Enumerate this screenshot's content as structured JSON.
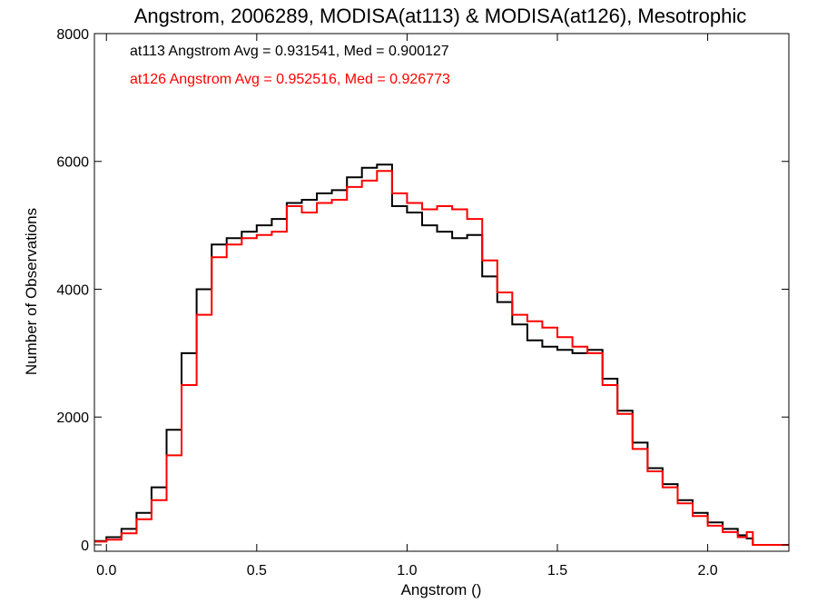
{
  "chart_data": {
    "type": "line",
    "title": "Angstrom, 2006289, MODISA(at113) & MODISA(at126), Mesotrophic",
    "xlabel": "Angstrom ()",
    "ylabel": "Number of Observations",
    "xlim": [
      -0.04,
      2.27
    ],
    "ylim": [
      -100,
      8000
    ],
    "x_ticks": [
      "0.0",
      "0.5",
      "1.0",
      "1.5",
      "2.0"
    ],
    "y_ticks": [
      "0",
      "2000",
      "4000",
      "6000",
      "8000"
    ],
    "grid": false,
    "legend_position": "top-left",
    "annotations": [
      {
        "text": "at113 Angstrom Avg = 0.931541, Med = 0.900127",
        "color": "#000000"
      },
      {
        "text": "at126 Angstrom Avg = 0.952516, Med = 0.926773",
        "color": "#ff0000"
      }
    ],
    "x": [
      -0.04,
      0.0,
      0.05,
      0.1,
      0.15,
      0.2,
      0.25,
      0.3,
      0.35,
      0.4,
      0.45,
      0.5,
      0.55,
      0.6,
      0.65,
      0.7,
      0.75,
      0.8,
      0.85,
      0.9,
      0.95,
      1.0,
      1.05,
      1.1,
      1.15,
      1.2,
      1.25,
      1.3,
      1.35,
      1.4,
      1.45,
      1.5,
      1.55,
      1.6,
      1.65,
      1.7,
      1.75,
      1.8,
      1.85,
      1.9,
      1.95,
      2.0,
      2.05,
      2.1,
      2.13,
      2.15,
      2.16,
      2.27
    ],
    "series": [
      {
        "color": "#000000",
        "values": [
          60,
          120,
          250,
          500,
          900,
          1800,
          3000,
          4000,
          4700,
          4800,
          4900,
          5000,
          5100,
          5350,
          5400,
          5500,
          5550,
          5750,
          5900,
          5950,
          5300,
          5200,
          5000,
          4900,
          4800,
          4850,
          4200,
          3800,
          3450,
          3200,
          3100,
          3050,
          3000,
          3050,
          2600,
          2100,
          1600,
          1200,
          950,
          700,
          500,
          350,
          250,
          150,
          100,
          0,
          0,
          0
        ]
      },
      {
        "color": "#ff0000",
        "values": [
          50,
          80,
          180,
          400,
          700,
          1400,
          2500,
          3600,
          4500,
          4700,
          4800,
          4850,
          4900,
          5300,
          5200,
          5350,
          5400,
          5600,
          5700,
          5850,
          5500,
          5350,
          5250,
          5300,
          5250,
          5100,
          4450,
          3950,
          3600,
          3500,
          3400,
          3250,
          3100,
          3000,
          2500,
          2050,
          1500,
          1150,
          900,
          650,
          450,
          300,
          200,
          120,
          200,
          0,
          0,
          0
        ]
      }
    ]
  }
}
